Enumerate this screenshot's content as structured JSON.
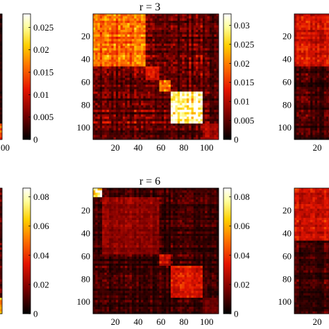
{
  "figure": {
    "colormap": "hot",
    "colormap_stops": [
      "#000000",
      "#7a0000",
      "#e51400",
      "#ff7a00",
      "#ffd000",
      "#ffffa0",
      "#ffffff"
    ]
  },
  "chart_data": [
    {
      "type": "heatmap",
      "panel": "top-left (cropped)",
      "title": "",
      "x_tick_labels": [
        "00"
      ],
      "y_tick_labels": [],
      "colorbar": {
        "ticks": [
          0,
          0.005,
          0.01,
          0.015,
          0.02,
          0.025
        ],
        "tick_labels": [
          "0",
          "0.005",
          "0.01",
          "0.015",
          "0.02",
          "0.025"
        ],
        "range": [
          0,
          0.028
        ]
      }
    },
    {
      "type": "heatmap",
      "panel": "top-center",
      "title": "r = 3",
      "x_ticks": [
        20,
        40,
        60,
        80,
        100
      ],
      "y_ticks": [
        20,
        40,
        60,
        80,
        100
      ],
      "x_tick_labels": [
        "20",
        "40",
        "60",
        "80",
        "100"
      ],
      "y_tick_labels": [
        "20",
        "40",
        "60",
        "80",
        "100"
      ],
      "xlim": [
        1,
        110
      ],
      "ylim": [
        1,
        110
      ],
      "blocks": [
        {
          "from": 1,
          "to": 45,
          "level": 0.018
        },
        {
          "from": 46,
          "to": 57,
          "level": 0.012
        },
        {
          "from": 58,
          "to": 68,
          "level": 0.02
        },
        {
          "from": 69,
          "to": 96,
          "level": 0.03
        },
        {
          "from": 97,
          "to": 110,
          "level": 0.01
        }
      ],
      "background_level": 0.004,
      "colorbar": {
        "ticks": [
          0,
          0.005,
          0.01,
          0.015,
          0.02,
          0.025,
          0.03
        ],
        "tick_labels": [
          "0",
          "0.005",
          "0.01",
          "0.015",
          "0.02",
          "0.025",
          "0.03"
        ],
        "range": [
          0,
          0.033
        ]
      }
    },
    {
      "type": "heatmap",
      "panel": "top-right (cropped)",
      "title": "",
      "x_tick_labels": [
        "20"
      ],
      "y_tick_labels": [
        "20",
        "40",
        "60",
        "80",
        "100"
      ]
    },
    {
      "type": "heatmap",
      "panel": "bottom-left (cropped)",
      "title": "",
      "x_tick_labels": [],
      "y_tick_labels": [],
      "colorbar": {
        "ticks": [
          0,
          0.02,
          0.04,
          0.06,
          0.08
        ],
        "tick_labels": [
          "0",
          "0.02",
          "0.04",
          "0.06",
          "0.08"
        ],
        "range": [
          0,
          0.086
        ]
      }
    },
    {
      "type": "heatmap",
      "panel": "bottom-center",
      "title": "r = 6",
      "x_ticks": [
        20,
        40,
        60,
        80,
        100
      ],
      "y_ticks": [
        20,
        40,
        60,
        80,
        100
      ],
      "x_tick_labels": [
        "20",
        "40",
        "60",
        "80",
        "100"
      ],
      "y_tick_labels": [
        "20",
        "40",
        "60",
        "80",
        "100"
      ],
      "xlim": [
        1,
        110
      ],
      "ylim": [
        1,
        110
      ],
      "blocks": [
        {
          "from": 1,
          "to": 7,
          "level": 0.07
        },
        {
          "from": 8,
          "to": 57,
          "level": 0.02
        },
        {
          "from": 58,
          "to": 68,
          "level": 0.03
        },
        {
          "from": 69,
          "to": 96,
          "level": 0.03
        },
        {
          "from": 97,
          "to": 110,
          "level": 0.015
        }
      ],
      "background_level": 0.006,
      "colorbar": {
        "ticks": [
          0,
          0.02,
          0.04,
          0.06,
          0.08
        ],
        "tick_labels": [
          "0",
          "0.02",
          "0.04",
          "0.06",
          "0.08"
        ],
        "range": [
          0,
          0.086
        ]
      }
    },
    {
      "type": "heatmap",
      "panel": "bottom-right (cropped)",
      "title": "",
      "x_tick_labels": [
        "20"
      ],
      "y_tick_labels": [
        "20",
        "40",
        "60",
        "80",
        "100"
      ]
    }
  ]
}
